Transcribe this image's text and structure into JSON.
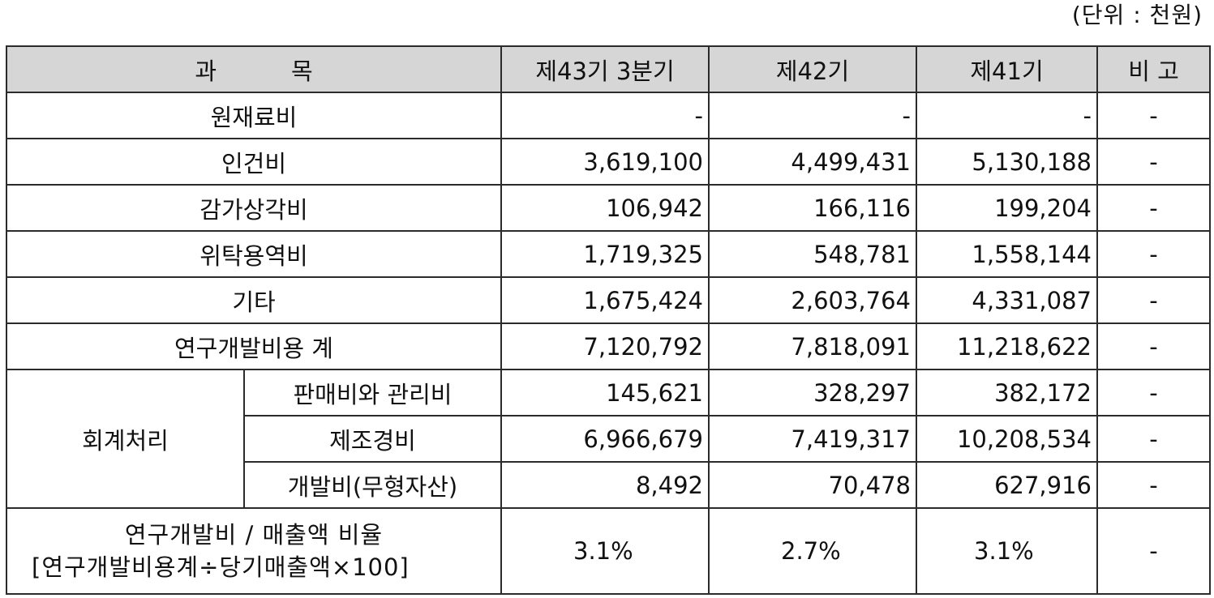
{
  "unit_note": "(단위 : 천원)",
  "header": {
    "item_a": "과",
    "item_b": "목",
    "period_43q3": "제43기 3분기",
    "period_42": "제42기",
    "period_41": "제41기",
    "remarks": "비 고"
  },
  "rows": [
    {
      "label": "원재료비",
      "p43q3": "-",
      "p42": "-",
      "p41": "-",
      "remarks": "-"
    },
    {
      "label": "인건비",
      "p43q3": "3,619,100",
      "p42": "4,499,431",
      "p41": "5,130,188",
      "remarks": "-"
    },
    {
      "label": "감가상각비",
      "p43q3": "106,942",
      "p42": "166,116",
      "p41": "199,204",
      "remarks": "-"
    },
    {
      "label": "위탁용역비",
      "p43q3": "1,719,325",
      "p42": "548,781",
      "p41": "1,558,144",
      "remarks": "-"
    },
    {
      "label": "기타",
      "p43q3": "1,675,424",
      "p42": "2,603,764",
      "p41": "4,331,087",
      "remarks": "-"
    },
    {
      "label": "연구개발비용 계",
      "p43q3": "7,120,792",
      "p42": "7,818,091",
      "p41": "11,218,622",
      "remarks": "-"
    }
  ],
  "accounting": {
    "group_label": "회계처리",
    "rows": [
      {
        "label": "판매비와 관리비",
        "p43q3": "145,621",
        "p42": "328,297",
        "p41": "382,172",
        "remarks": "-"
      },
      {
        "label": "제조경비",
        "p43q3": "6,966,679",
        "p42": "7,419,317",
        "p41": "10,208,534",
        "remarks": "-"
      },
      {
        "label": "개발비(무형자산)",
        "p43q3": "8,492",
        "p42": "70,478",
        "p41": "627,916",
        "remarks": "-"
      }
    ]
  },
  "ratio": {
    "label_line1": "연구개발비 / 매출액 비율",
    "label_line2": "[연구개발비용계÷당기매출액×100]",
    "p43q3": "3.1%",
    "p42": "2.7%",
    "p41": "3.1%",
    "remarks": "-"
  }
}
